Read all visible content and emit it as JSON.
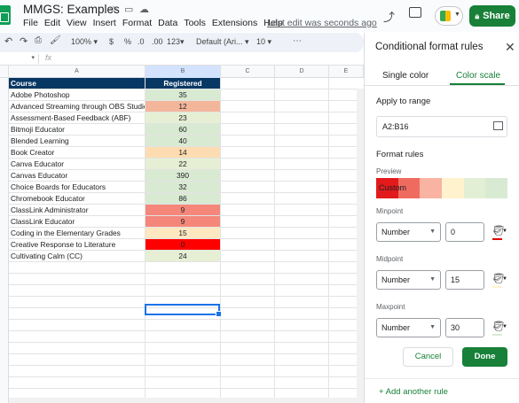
{
  "doc": {
    "title": "MMGS: Examples",
    "menu": [
      "File",
      "Edit",
      "View",
      "Insert",
      "Format",
      "Data",
      "Tools",
      "Extensions",
      "Help"
    ],
    "last_edit": "Last edit was seconds ago",
    "share_label": "Share"
  },
  "toolbar": {
    "zoom": "100%",
    "currency": "$",
    "percent": "%",
    "dec_decrease": ".0",
    "dec_increase": ".00",
    "format_more": "123",
    "font": "Default (Ari...",
    "font_size": "10",
    "more": "⋯"
  },
  "formula": {
    "cell_ref": "",
    "fx": "fx"
  },
  "columns": [
    "A",
    "B",
    "C",
    "D",
    "E"
  ],
  "sheet": {
    "header": {
      "course": "Course",
      "registered": "Registered"
    },
    "rows": [
      {
        "course": "Adobe Photoshop",
        "registered": "35",
        "bg": "#d9ead3"
      },
      {
        "course": "Advanced Streaming through OBS Studio",
        "registered": "12",
        "bg": "#f4b69b"
      },
      {
        "course": "Assessment-Based Feedback (ABF)",
        "registered": "23",
        "bg": "#e6efd4"
      },
      {
        "course": "Bitmoji Educator",
        "registered": "60",
        "bg": "#d9ead3"
      },
      {
        "course": "Blended Learning",
        "registered": "40",
        "bg": "#d9ead3"
      },
      {
        "course": "Book Creator",
        "registered": "14",
        "bg": "#fcdcb0"
      },
      {
        "course": "Canva Educator",
        "registered": "22",
        "bg": "#e6efd4"
      },
      {
        "course": "Canvas Educator",
        "registered": "390",
        "bg": "#d9ead3"
      },
      {
        "course": "Choice Boards for Educators",
        "registered": "32",
        "bg": "#d9ead3"
      },
      {
        "course": "Chromebook Educator",
        "registered": "86",
        "bg": "#d9ead3"
      },
      {
        "course": "ClassLink Administrator",
        "registered": "9",
        "bg": "#f4877a"
      },
      {
        "course": "ClassLink Educator",
        "registered": "9",
        "bg": "#f4877a"
      },
      {
        "course": "Coding in the Elementary Grades",
        "registered": "15",
        "bg": "#fde8c0"
      },
      {
        "course": "Creative Response to Literature",
        "registered": "0",
        "bg": "#ff0000"
      },
      {
        "course": "Cultivating Calm (CC)",
        "registered": "24",
        "bg": "#e6efd4"
      }
    ]
  },
  "panel": {
    "title": "Conditional format rules",
    "tab_single": "Single color",
    "tab_scale": "Color scale",
    "apply_label": "Apply to range",
    "range": "A2:B16",
    "rules_label": "Format rules",
    "preview_label": "Preview",
    "preview_text": "Custom",
    "preview_colors": [
      "#e31a1c",
      "#f06b5f",
      "#f8b3a3",
      "#fff2cc",
      "#e2efd5",
      "#d9ead3"
    ],
    "minpoint_label": "Minpoint",
    "minpoint_type": "Number",
    "minpoint_value": "0",
    "minpoint_color": "#e00000",
    "midpoint_label": "Midpoint",
    "midpoint_type": "Number",
    "midpoint_value": "15",
    "midpoint_color": "#fff2cc",
    "maxpoint_label": "Maxpoint",
    "maxpoint_type": "Number",
    "maxpoint_value": "30",
    "maxpoint_color": "#d9ead3",
    "cancel_label": "Cancel",
    "done_label": "Done",
    "add_rule_label": "+ Add another rule"
  }
}
